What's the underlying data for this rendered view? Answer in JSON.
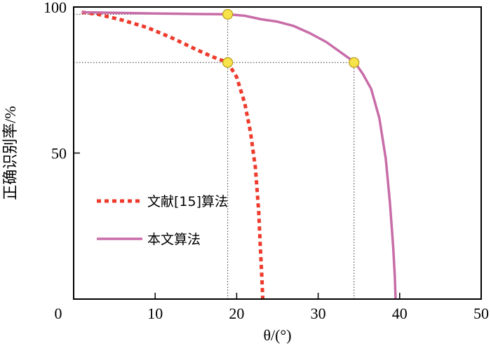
{
  "chart_data": {
    "type": "line",
    "title": "",
    "xlabel": "θ/(°)",
    "ylabel": "正确识别率/%",
    "xlim": [
      0,
      50
    ],
    "ylim": [
      0,
      100
    ],
    "xticks": [
      0,
      10,
      20,
      30,
      40,
      50
    ],
    "yticks": [
      50,
      100
    ],
    "grid": false,
    "legend_position": "center-left",
    "series": [
      {
        "name": "文献[15]算法",
        "color": "#ee3a2c",
        "style": "dotted",
        "x": [
          1,
          3,
          6,
          9,
          12,
          15,
          17,
          18.9,
          20,
          21,
          21.7,
          22.3,
          22.7,
          22.9,
          23.1,
          23.2
        ],
        "y": [
          98.2,
          97.5,
          95.5,
          93,
          89.5,
          85.5,
          83,
          81,
          76,
          67,
          57,
          45,
          30,
          18,
          7,
          0
        ]
      },
      {
        "name": "本文算法",
        "color": "#c86ca8",
        "style": "solid",
        "x": [
          1,
          5,
          10,
          15,
          18.9,
          21,
          23,
          25,
          27,
          29,
          31,
          33,
          34.5,
          35.5,
          36.5,
          37.5,
          38.3,
          38.8,
          39.2,
          39.4,
          39.5
        ],
        "y": [
          98.2,
          98,
          97.8,
          97.6,
          97.5,
          97,
          95.8,
          95,
          93.5,
          91,
          88,
          84,
          81,
          77,
          72,
          62,
          48,
          33,
          18,
          8,
          0
        ]
      }
    ],
    "markers": [
      {
        "x": 18.9,
        "y": 97.5
      },
      {
        "x": 18.9,
        "y": 81
      },
      {
        "x": 34.4,
        "y": 81
      }
    ],
    "reference_lines": [
      {
        "name": "h-upper",
        "x1": 0,
        "y1": 97.5,
        "x2": 18.9,
        "y2": 97.5
      },
      {
        "name": "h-lower",
        "x1": 0,
        "y1": 81,
        "x2": 34.4,
        "y2": 81
      },
      {
        "name": "v-left",
        "x1": 18.9,
        "y1": 0,
        "x2": 18.9,
        "y2": 97.5
      },
      {
        "name": "v-right",
        "x1": 34.4,
        "y1": 0,
        "x2": 34.4,
        "y2": 81
      }
    ],
    "colors": {
      "marker_fill": "#f6e24a",
      "marker_stroke": "#b89a1a",
      "guide": "#333333"
    }
  }
}
